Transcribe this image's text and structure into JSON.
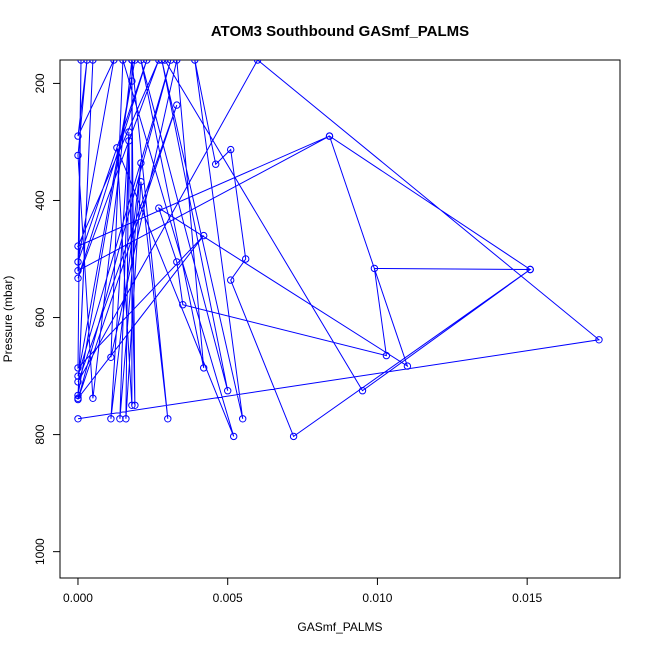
{
  "chart_data": {
    "type": "line",
    "title": "ATOM3 Southbound GASmf_PALMS",
    "xlabel": "GASmf_PALMS",
    "ylabel": "Pressure (mbar)",
    "xlim": [
      -0.0006,
      0.0181
    ],
    "ylim": [
      1045,
      160
    ],
    "y_reversed": true,
    "xticks": [
      0.0,
      0.005,
      0.01,
      0.015
    ],
    "xtick_labels": [
      "0.000",
      "0.005",
      "0.010",
      "0.015"
    ],
    "yticks": [
      200,
      400,
      600,
      800,
      1000
    ],
    "ytick_labels": [
      "200",
      "400",
      "600",
      "800",
      "1000"
    ],
    "series_color": "#0000ff",
    "series": [
      {
        "points": [
          [
            0.0,
            773
          ],
          [
            0.0174,
            638
          ],
          [
            0.006,
            160
          ],
          [
            0.0,
            710
          ],
          [
            0.0033,
            237
          ],
          [
            0.0,
            740
          ],
          [
            0.0031,
            160
          ],
          [
            0.0,
            700
          ],
          [
            0.0019,
            160
          ],
          [
            0.0,
            733
          ],
          [
            0.0005,
            160
          ],
          [
            0.0,
            738
          ],
          [
            0.0042,
            460
          ],
          [
            0.0,
            686
          ],
          [
            0.0001,
            160
          ],
          [
            0.0,
            520
          ],
          [
            0.0084,
            290
          ],
          [
            0.0,
            478
          ],
          [
            0.0027,
            160
          ],
          [
            0.0,
            533
          ],
          [
            0.0023,
            160
          ],
          [
            0.0,
            505
          ],
          [
            0.0012,
            160
          ],
          [
            0.0,
            290
          ],
          [
            0.0003,
            160
          ],
          [
            0.0,
            323
          ],
          [
            0.0005,
            738
          ],
          [
            0.0018,
            160
          ],
          [
            0.0018,
            196
          ],
          [
            0.0019,
            750
          ],
          [
            0.0017,
            298
          ],
          [
            0.0014,
            773
          ],
          [
            0.0021,
            336
          ],
          [
            0.0011,
            773
          ],
          [
            0.0017,
            283
          ],
          [
            0.0016,
            773
          ],
          [
            0.0021,
            368
          ],
          [
            0.003,
            773
          ],
          [
            0.0018,
            160
          ],
          [
            0.0018,
            750
          ],
          [
            0.0013,
            310
          ],
          [
            0.0052,
            803
          ],
          [
            0.0015,
            160
          ],
          [
            0.0011,
            668
          ],
          [
            0.0033,
            160
          ],
          [
            0.0042,
            686
          ],
          [
            0.0021,
            160
          ],
          [
            0.005,
            725
          ],
          [
            0.0028,
            160
          ],
          [
            0.0055,
            773
          ],
          [
            0.0039,
            160
          ],
          [
            0.0046,
            338
          ],
          [
            0.0051,
            313
          ],
          [
            0.0056,
            500
          ],
          [
            0.0051,
            536
          ],
          [
            0.0072,
            803
          ],
          [
            0.0151,
            518
          ],
          [
            0.0099,
            516
          ],
          [
            0.0103,
            665
          ],
          [
            0.0035,
            578
          ],
          [
            0.0033,
            505
          ],
          [
            0.0027,
            413
          ],
          [
            0.011,
            683
          ],
          [
            0.0084,
            290
          ],
          [
            0.0151,
            518
          ],
          [
            0.0095,
            725
          ],
          [
            0.0029,
            160
          ]
        ]
      }
    ]
  }
}
